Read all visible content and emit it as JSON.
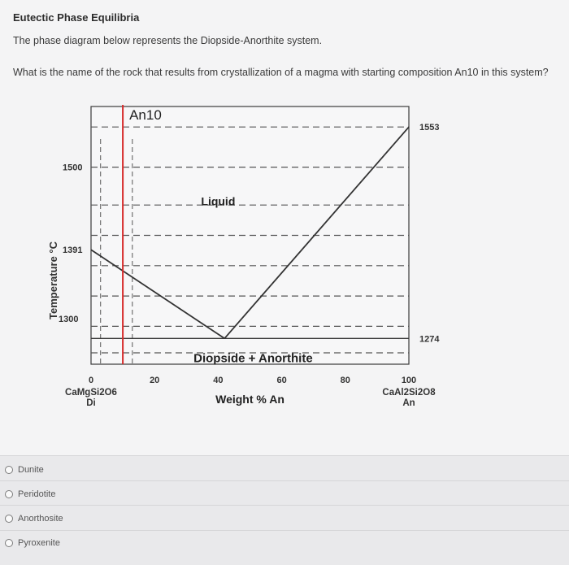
{
  "question": {
    "title": "Eutectic Phase Equilibria",
    "intro": "The phase diagram below represents the Diopside-Anorthite system.",
    "prompt": "What is the name of the rock that results from crystallization of a magma with starting composition An10 in this system?"
  },
  "chart_data": {
    "type": "line",
    "xlabel": "Weight % An",
    "ylabel": "Temperature °C",
    "xlim": [
      0,
      100
    ],
    "ylim": [
      1240,
      1580
    ],
    "x_ticks": [
      "0",
      "20",
      "40",
      "60",
      "80",
      "100"
    ],
    "y_ticks": [
      "1300",
      "1500"
    ],
    "endpoint_labels": {
      "left_formula": "CaMgSi2O6",
      "left_abbr": "Di",
      "right_formula": "CaAl2Si2O8",
      "right_abbr": "An"
    },
    "temperature_labels": [
      "1553",
      "1391",
      "1274"
    ],
    "region_labels": [
      "Liquid",
      "Diopside + Anorthite"
    ],
    "marker": {
      "label": "An10",
      "x": 10,
      "color": "#d62a2a"
    },
    "series": [
      {
        "values": [
          [
            0,
            1391
          ],
          [
            42,
            1274
          ]
        ]
      },
      {
        "values": [
          [
            42,
            1274
          ],
          [
            100,
            1553
          ]
        ]
      }
    ],
    "eutectic": {
      "x": 42,
      "y": 1274
    },
    "gridlines_dashed": [
      1553,
      1500,
      1450,
      1410,
      1370,
      1330,
      1290,
      1255
    ],
    "grid": true
  },
  "answers": {
    "options": [
      "Dunite",
      "Peridotite",
      "Anorthosite",
      "Pyroxenite"
    ]
  }
}
